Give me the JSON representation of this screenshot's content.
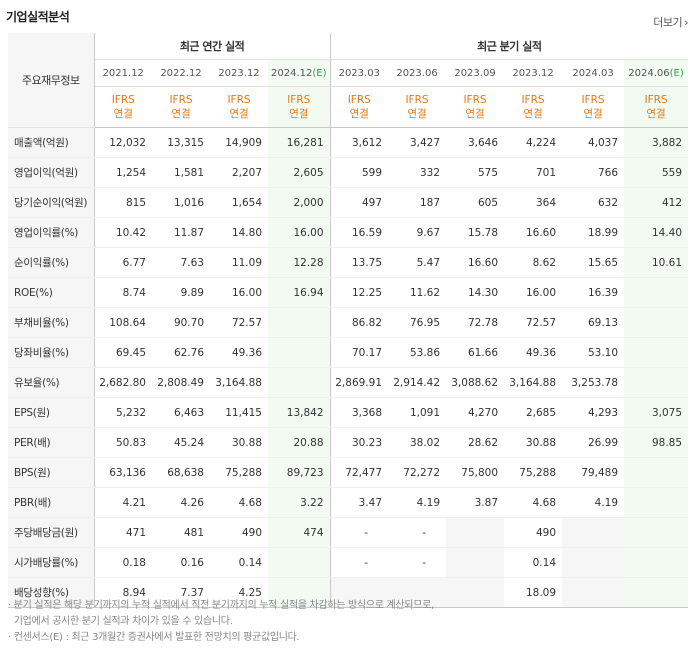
{
  "title": "기업실적분석",
  "more_label": "더보기",
  "more_arrow": "›",
  "corner_label": "주요재무정보",
  "group_annual": "최근 연간 실적",
  "group_quarter": "최근 분기 실적",
  "periods": [
    "2021.12",
    "2022.12",
    "2023.12",
    "2024.12",
    "2023.03",
    "2023.06",
    "2023.09",
    "2023.12",
    "2024.03",
    "2024.06"
  ],
  "estimate_marker": "(E)",
  "ifrs": "IFRS",
  "consolidated": "연결",
  "rows": [
    {
      "label": "매출액(억원)",
      "values": [
        "12,032",
        "13,315",
        "14,909",
        "16,281",
        "3,612",
        "3,427",
        "3,646",
        "4,224",
        "4,037",
        "3,882"
      ]
    },
    {
      "label": "영업이익(억원)",
      "values": [
        "1,254",
        "1,581",
        "2,207",
        "2,605",
        "599",
        "332",
        "575",
        "701",
        "766",
        "559"
      ]
    },
    {
      "label": "당기순이익(억원)",
      "values": [
        "815",
        "1,016",
        "1,654",
        "2,000",
        "497",
        "187",
        "605",
        "364",
        "632",
        "412"
      ]
    },
    {
      "label": "영업이익률(%)",
      "values": [
        "10.42",
        "11.87",
        "14.80",
        "16.00",
        "16.59",
        "9.67",
        "15.78",
        "16.60",
        "18.99",
        "14.40"
      ]
    },
    {
      "label": "순이익률(%)",
      "values": [
        "6.77",
        "7.63",
        "11.09",
        "12.28",
        "13.75",
        "5.47",
        "16.60",
        "8.62",
        "15.65",
        "10.61"
      ]
    },
    {
      "label": "ROE(%)",
      "values": [
        "8.74",
        "9.89",
        "16.00",
        "16.94",
        "12.25",
        "11.62",
        "14.30",
        "16.00",
        "16.39",
        ""
      ]
    },
    {
      "label": "부채비율(%)",
      "values": [
        "108.64",
        "90.70",
        "72.57",
        "",
        "86.82",
        "76.95",
        "72.78",
        "72.57",
        "69.13",
        ""
      ]
    },
    {
      "label": "당좌비율(%)",
      "values": [
        "69.45",
        "62.76",
        "49.36",
        "",
        "70.17",
        "53.86",
        "61.66",
        "49.36",
        "53.10",
        ""
      ]
    },
    {
      "label": "유보율(%)",
      "values": [
        "2,682.80",
        "2,808.49",
        "3,164.88",
        "",
        "2,869.91",
        "2,914.42",
        "3,088.62",
        "3,164.88",
        "3,253.78",
        ""
      ]
    },
    {
      "label": "EPS(원)",
      "values": [
        "5,232",
        "6,463",
        "11,415",
        "13,842",
        "3,368",
        "1,091",
        "4,270",
        "2,685",
        "4,293",
        "3,075"
      ]
    },
    {
      "label": "PER(배)",
      "values": [
        "50.83",
        "45.24",
        "30.88",
        "20.88",
        "30.23",
        "38.02",
        "28.62",
        "30.88",
        "26.99",
        "98.85"
      ]
    },
    {
      "label": "BPS(원)",
      "values": [
        "63,136",
        "68,638",
        "75,288",
        "89,723",
        "72,477",
        "72,272",
        "75,800",
        "75,288",
        "79,489",
        ""
      ]
    },
    {
      "label": "PBR(배)",
      "values": [
        "4.21",
        "4.26",
        "4.68",
        "3.22",
        "3.47",
        "4.19",
        "3.87",
        "4.68",
        "4.19",
        ""
      ]
    },
    {
      "label": "주당배당금(원)",
      "values": [
        "471",
        "481",
        "490",
        "474",
        "-",
        "-",
        "",
        "490",
        "",
        ""
      ]
    },
    {
      "label": "시가배당률(%)",
      "values": [
        "0.18",
        "0.16",
        "0.14",
        "",
        "-",
        "-",
        "",
        "0.14",
        "",
        ""
      ]
    },
    {
      "label": "배당성향(%)",
      "values": [
        "8.94",
        "7.37",
        "4.25",
        "",
        "",
        "",
        "",
        "18.09",
        "",
        ""
      ]
    }
  ],
  "notes": [
    "· 분기 실적은 해당 분기까지의 누적 실적에서 직전 분기까지의 누적 실적을 차감하는 방식으로 계산되므로,",
    "  기업에서 공시한 분기 실적과 차이가 있을 수 있습니다.",
    "· 컨센서스(E) : 최근 3개월간 증권사에서 발표한 전망치의 평균값입니다."
  ]
}
